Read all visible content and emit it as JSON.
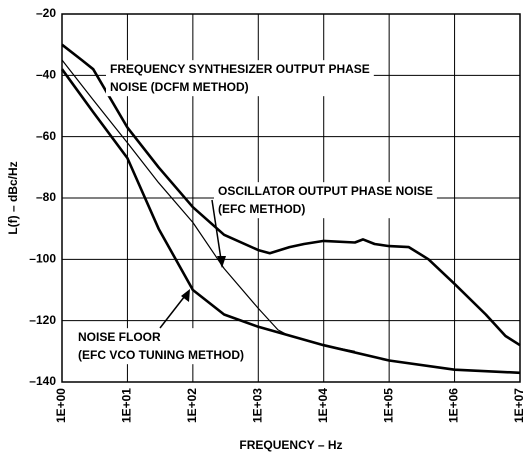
{
  "chart_data": {
    "type": "line",
    "xlabel": "FREQUENCY – Hz",
    "ylabel": "L(f) – dBc/Hz",
    "xscale": "log",
    "grid": true,
    "xlim": [
      1,
      10000000
    ],
    "ylim": [
      -140,
      -20
    ],
    "xticks": [
      {
        "value": 1,
        "label": "1E+00"
      },
      {
        "value": 10,
        "label": "1E+01"
      },
      {
        "value": 100,
        "label": "1E+02"
      },
      {
        "value": 1000,
        "label": "1E+03"
      },
      {
        "value": 10000,
        "label": "1E+04"
      },
      {
        "value": 100000,
        "label": "1E+05"
      },
      {
        "value": 1000000,
        "label": "1E+06"
      },
      {
        "value": 10000000,
        "label": "1E+07"
      }
    ],
    "yticks": [
      {
        "value": -20,
        "label": "–20"
      },
      {
        "value": -40,
        "label": "–40"
      },
      {
        "value": -60,
        "label": "–60"
      },
      {
        "value": -80,
        "label": "–80"
      },
      {
        "value": -100,
        "label": "–100"
      },
      {
        "value": -120,
        "label": "–120"
      },
      {
        "value": -140,
        "label": "–140"
      }
    ],
    "series": [
      {
        "color": "#000000",
        "linewidth": 2.6,
        "x": [
          1,
          2,
          3,
          10,
          30,
          100,
          300,
          1000,
          1500,
          3000,
          5000,
          10000,
          30000,
          40000,
          60000,
          100000,
          200000,
          400000,
          1000000,
          3000000,
          6000000,
          10000000
        ],
        "values": [
          -30,
          -35,
          -38,
          -57,
          -70,
          -83,
          -92,
          -97,
          -98,
          -96,
          -95,
          -94,
          -94.5,
          -93.5,
          -95,
          -95.7,
          -96,
          -100,
          -108,
          -118,
          -125,
          -128
        ]
      },
      {
        "color": "#000000",
        "linewidth": 1.2,
        "x": [
          1,
          3,
          10,
          30,
          100,
          300,
          1000,
          2000,
          3000,
          10000,
          30000
        ],
        "values": [
          -35,
          -48,
          -62,
          -75,
          -88,
          -103,
          -116,
          -123,
          -125,
          -128,
          -130
        ]
      },
      {
        "color": "#000000",
        "linewidth": 2.6,
        "x": [
          1,
          3,
          10,
          30,
          100,
          300,
          1000,
          10000,
          100000,
          1000000,
          10000000
        ],
        "values": [
          -38,
          -52,
          -67,
          -90,
          -110,
          -118,
          -122,
          -128,
          -133,
          -136,
          -137
        ]
      }
    ],
    "annotations": [
      [
        "FREQUENCY SYNTHESIZER OUTPUT PHASE",
        "NOISE (DCFM METHOD)"
      ],
      [
        "OSCILLATOR OUTPUT PHASE NOISE",
        "(EFC METHOD)"
      ],
      [
        "NOISE FLOOR",
        "(EFC VCO TUNING METHOD)"
      ]
    ]
  }
}
